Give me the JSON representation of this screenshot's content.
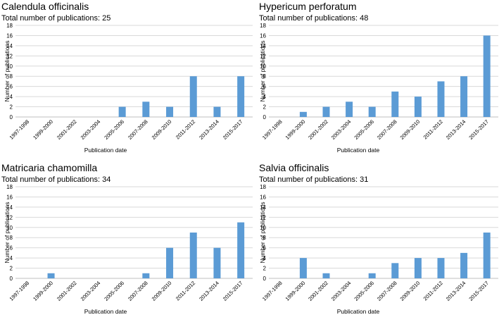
{
  "colors": {
    "bar": "#5b9bd5",
    "grid": "#d9d9d9"
  },
  "chart_data": [
    {
      "type": "bar",
      "title": "Calendula officinalis",
      "subtitle": "Total number of publications: 25",
      "xlabel": "Publication date",
      "ylabel": "Number of publications",
      "ylim": [
        0,
        18
      ],
      "yticks": [
        0,
        2,
        4,
        6,
        8,
        10,
        12,
        14,
        16,
        18
      ],
      "categories": [
        "1997-1998",
        "1999-2000",
        "2001-2002",
        "2003-2004",
        "2005-2006",
        "2007-2008",
        "2009-2010",
        "2011-2012",
        "2013-2014",
        "2015-2017"
      ],
      "values": [
        0,
        0,
        0,
        0,
        2,
        3,
        2,
        8,
        2,
        8
      ]
    },
    {
      "type": "bar",
      "title": "Hypericum perforatum",
      "subtitle": "Total number of publications: 48",
      "xlabel": "Publication date",
      "ylabel": "Number of publications",
      "ylim": [
        0,
        18
      ],
      "yticks": [
        0,
        2,
        4,
        6,
        8,
        10,
        12,
        14,
        16,
        18
      ],
      "categories": [
        "1997-1998",
        "1999-2000",
        "2001-2002",
        "2003-2004",
        "2005-2006",
        "2007-2008",
        "2009-2010",
        "2011-2012",
        "2013-2014",
        "2015-2017"
      ],
      "values": [
        0,
        1,
        2,
        3,
        2,
        5,
        4,
        7,
        8,
        16
      ]
    },
    {
      "type": "bar",
      "title": "Matricaria chamomilla",
      "subtitle": "Total number of publications: 34",
      "xlabel": "Publication date",
      "ylabel": "Number of publications",
      "ylim": [
        0,
        18
      ],
      "yticks": [
        0,
        2,
        4,
        6,
        8,
        10,
        12,
        14,
        16,
        18
      ],
      "categories": [
        "1997-1998",
        "1999-2000",
        "2001-2002",
        "2003-2004",
        "2005-2006",
        "2007-2008",
        "2009-2010",
        "2011-2012",
        "2013-2014",
        "2015-2017"
      ],
      "values": [
        0,
        1,
        0,
        0,
        0,
        1,
        6,
        9,
        6,
        11
      ]
    },
    {
      "type": "bar",
      "title": "Salvia officinalis",
      "subtitle": "Total number of publications: 31",
      "xlabel": "Publication date",
      "ylabel": "Number of publications",
      "ylim": [
        0,
        18
      ],
      "yticks": [
        0,
        2,
        4,
        6,
        8,
        10,
        12,
        14,
        16,
        18
      ],
      "categories": [
        "1997-1998",
        "1999-2000",
        "2001-2002",
        "2003-2004",
        "2005-2006",
        "2007-2008",
        "2009-2010",
        "2011-2012",
        "2013-2014",
        "2015-2017"
      ],
      "values": [
        0,
        4,
        1,
        0,
        1,
        3,
        4,
        4,
        5,
        9
      ]
    }
  ]
}
